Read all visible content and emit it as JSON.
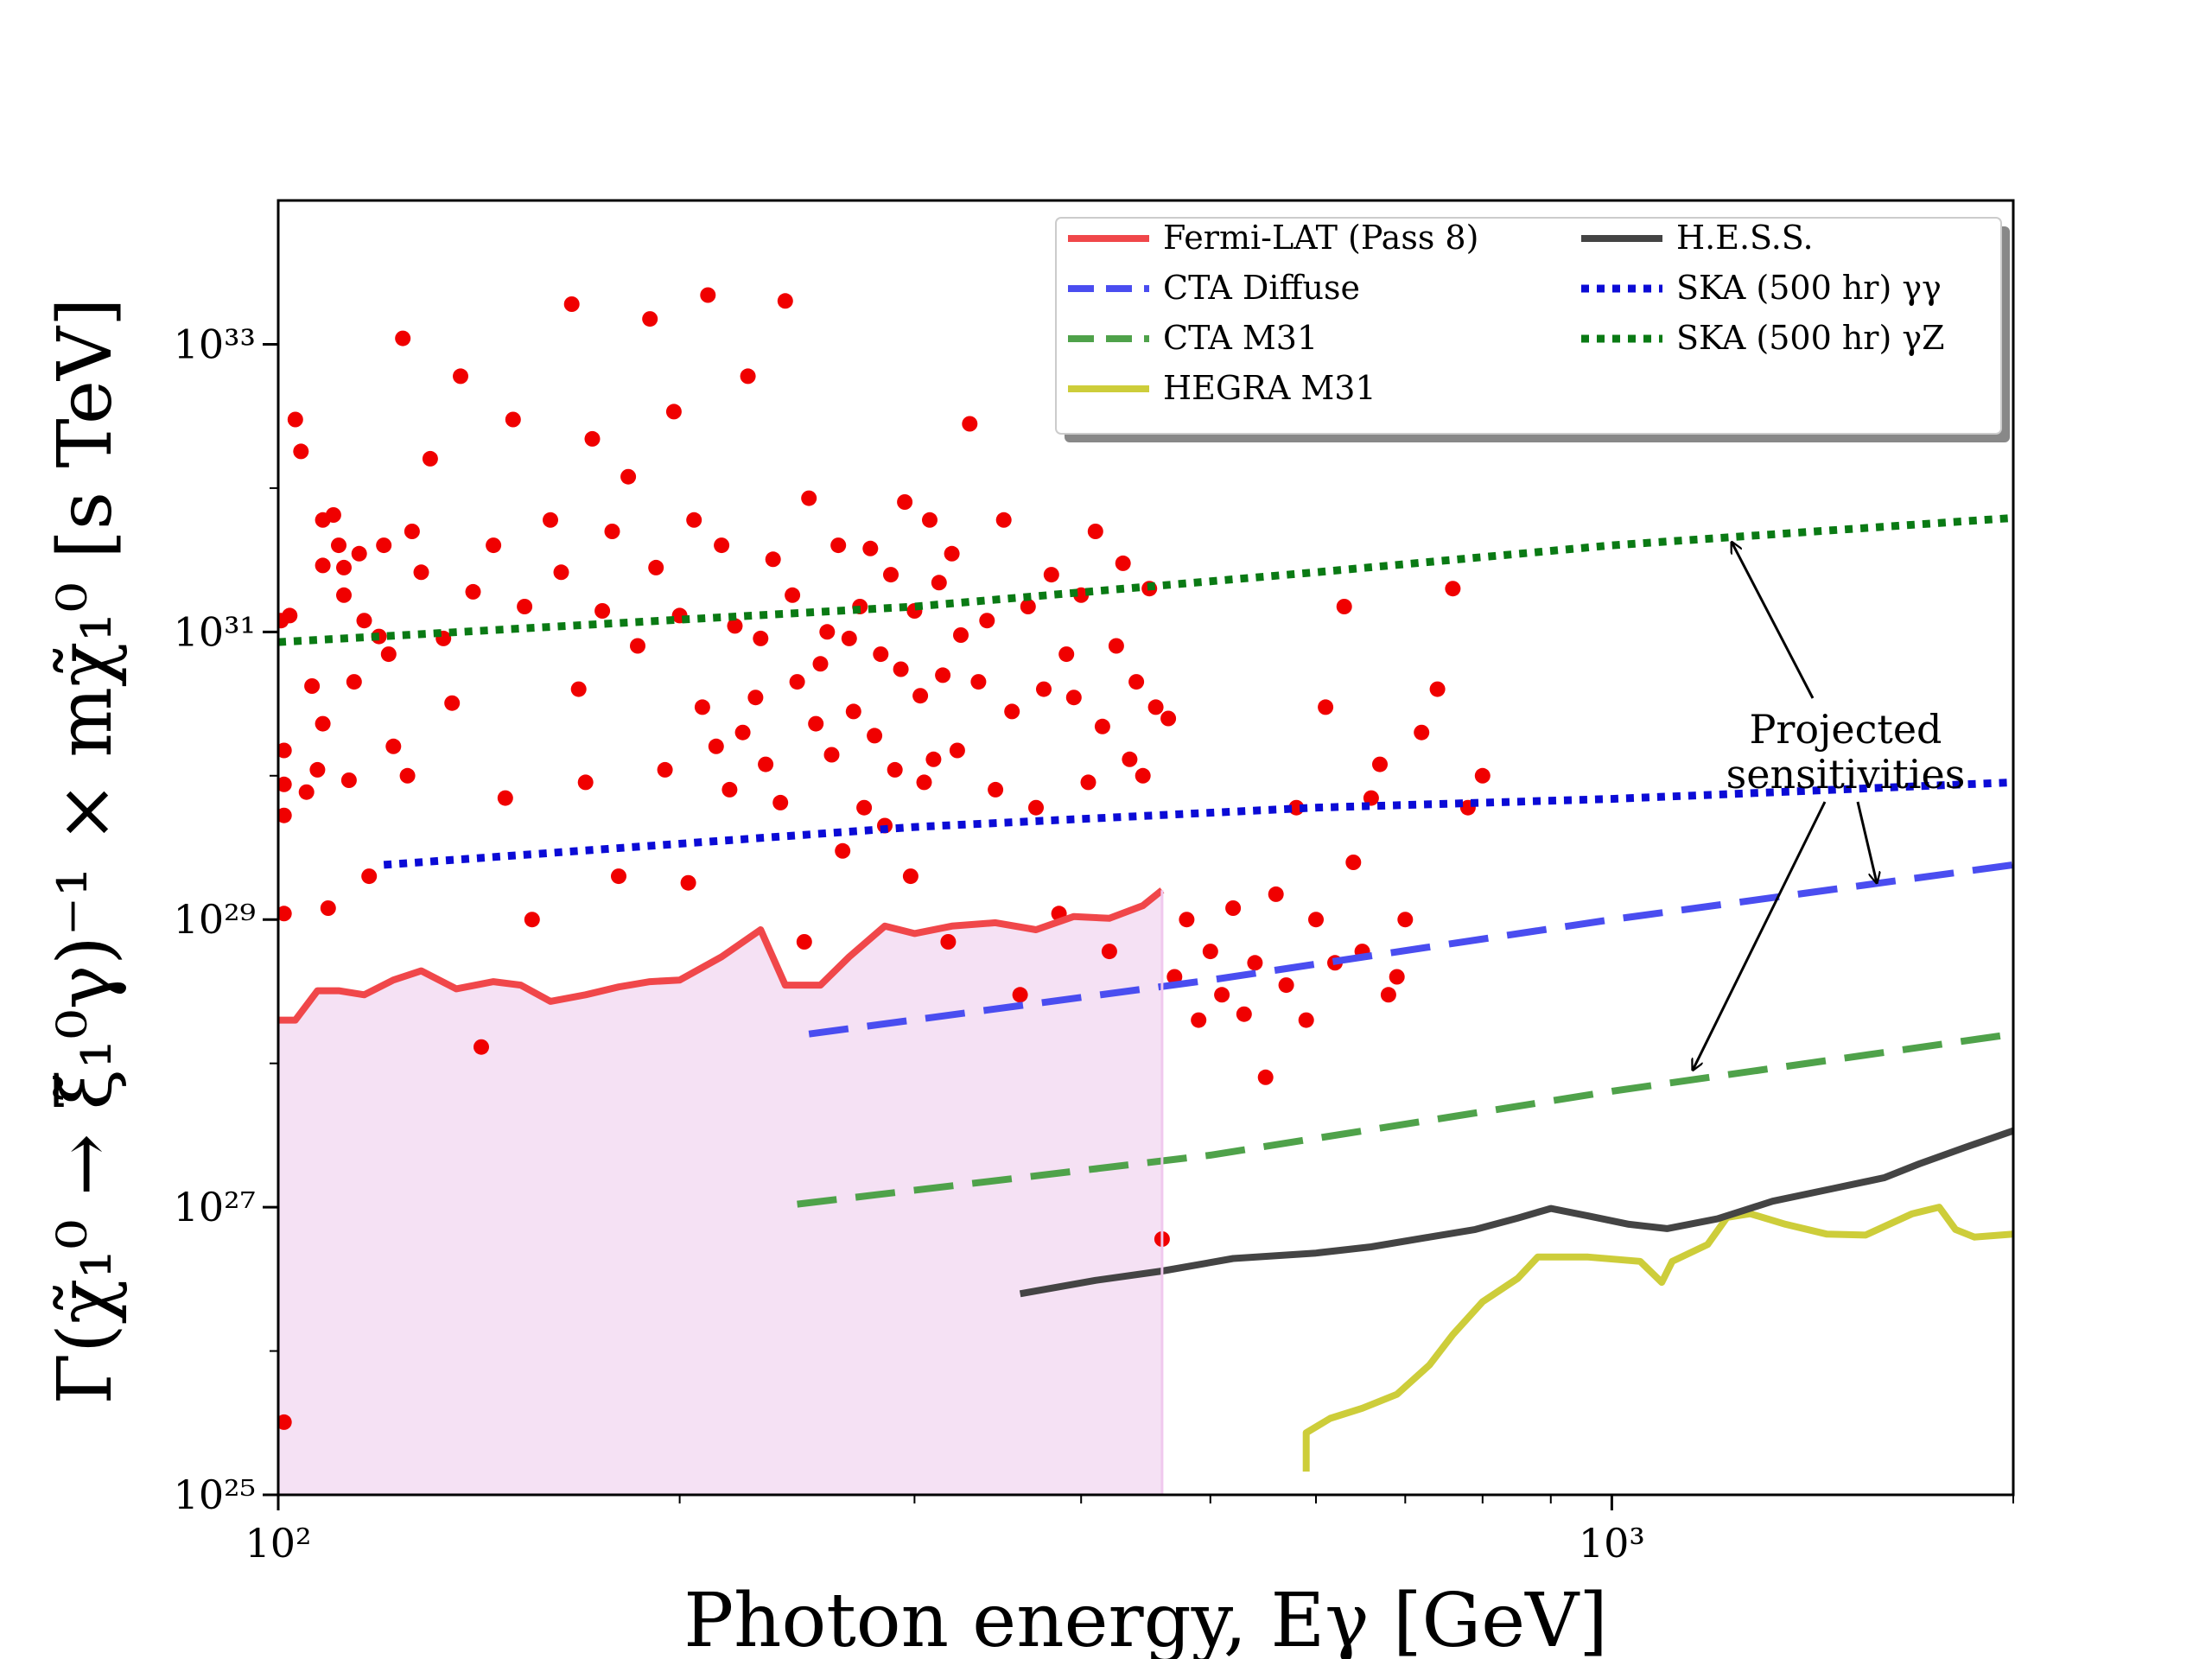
{
  "chart_data": {
    "type": "scatter",
    "xlabel": "Photon energy,  Eγ [GeV]",
    "ylabel": "Γ(χ̃₁⁰ → ξ̃₁⁰γ)⁻¹ × mχ̃₁⁰ [s TeV]",
    "xscale": "log",
    "yscale": "log",
    "xlim": [
      100,
      2000
    ],
    "ylim": [
      1e+25,
      1e+34
    ],
    "xticks": [
      {
        "value": 100,
        "label": "10²"
      },
      {
        "value": 1000,
        "label": "10³"
      }
    ],
    "yticks": [
      {
        "value": 1e+25,
        "label": "10²⁵"
      },
      {
        "value": 1e+27,
        "label": "10²⁷"
      },
      {
        "value": 1e+29,
        "label": "10²⁹"
      },
      {
        "value": 1e+31,
        "label": "10³¹"
      },
      {
        "value": 1e+33,
        "label": "10³³"
      }
    ],
    "shaded_region": {
      "name": "Fermi-LAT excluded region",
      "color": "#f5e1f4",
      "x_max": 460
    },
    "series": [
      {
        "name": "Fermi-LAT (Pass 8)",
        "color": "#f0474a",
        "style": "solid",
        "points": [
          [
            100,
            2e+28
          ],
          [
            103,
            2e+28
          ],
          [
            107,
            3.2e+28
          ],
          [
            111,
            3.2e+28
          ],
          [
            116,
            3e+28
          ],
          [
            122,
            3.8e+28
          ],
          [
            128,
            4.4e+28
          ],
          [
            136,
            3.3e+28
          ],
          [
            145,
            3.7e+28
          ],
          [
            152,
            3.5e+28
          ],
          [
            160,
            2.7e+28
          ],
          [
            170,
            3e+28
          ],
          [
            180,
            3.4e+28
          ],
          [
            190,
            3.7e+28
          ],
          [
            200,
            3.8e+28
          ],
          [
            215,
            5.5e+28
          ],
          [
            230,
            8.5e+28
          ],
          [
            240,
            3.5e+28
          ],
          [
            255,
            3.5e+28
          ],
          [
            268,
            5.5e+28
          ],
          [
            285,
            9e+28
          ],
          [
            300,
            8e+28
          ],
          [
            320,
            9e+28
          ],
          [
            345,
            9.5e+28
          ],
          [
            370,
            8.5e+28
          ],
          [
            395,
            1.05e+29
          ],
          [
            420,
            1.02e+29
          ],
          [
            445,
            1.25e+29
          ],
          [
            460,
            1.6e+29
          ]
        ]
      },
      {
        "name": "CTA Diffuse",
        "color": "#4a4df0",
        "style": "dashed",
        "points": [
          [
            250,
            1.6e+28
          ],
          [
            500,
            3.8e+28
          ],
          [
            1000,
            1e+29
          ],
          [
            2000,
            2.4e+29
          ]
        ]
      },
      {
        "name": "CTA M31",
        "color": "#4fa24a",
        "style": "dashed",
        "points": [
          [
            245,
            1.05e+27
          ],
          [
            500,
            2.3e+27
          ],
          [
            1000,
            6.4e+27
          ],
          [
            2000,
            1.6e+28
          ]
        ]
      },
      {
        "name": "HEGRA M31",
        "color": "#cdcd3a",
        "style": "solid",
        "points": [
          [
            590,
            1.45e+25
          ],
          [
            590,
            2.7e+25
          ],
          [
            615,
            3.4e+25
          ],
          [
            650,
            4e+25
          ],
          [
            690,
            5e+25
          ],
          [
            730,
            8e+25
          ],
          [
            760,
            1.3e+26
          ],
          [
            800,
            2.2e+26
          ],
          [
            850,
            3.2e+26
          ],
          [
            880,
            4.5e+26
          ],
          [
            960,
            4.5e+26
          ],
          [
            1050,
            4.2e+26
          ],
          [
            1090,
            3e+26
          ],
          [
            1110,
            4.2e+26
          ],
          [
            1180,
            5.5e+26
          ],
          [
            1220,
            8.5e+26
          ],
          [
            1270,
            9e+26
          ],
          [
            1350,
            7.6e+26
          ],
          [
            1450,
            6.5e+26
          ],
          [
            1550,
            6.4e+26
          ],
          [
            1680,
            9e+26
          ],
          [
            1760,
            1e+27
          ],
          [
            1810,
            7e+26
          ],
          [
            1870,
            6.2e+26
          ],
          [
            2000,
            6.5e+26
          ]
        ]
      },
      {
        "name": "H.E.S.S.",
        "color": "#444444",
        "style": "solid",
        "points": [
          [
            360,
            2.5e+26
          ],
          [
            410,
            3.1e+26
          ],
          [
            460,
            3.6e+26
          ],
          [
            520,
            4.4e+26
          ],
          [
            600,
            4.8e+26
          ],
          [
            660,
            5.3e+26
          ],
          [
            730,
            6.2e+26
          ],
          [
            790,
            7e+26
          ],
          [
            850,
            8.4e+26
          ],
          [
            900,
            9.8e+26
          ],
          [
            960,
            8.7e+26
          ],
          [
            1030,
            7.6e+26
          ],
          [
            1100,
            7.1e+26
          ],
          [
            1200,
            8.3e+26
          ],
          [
            1320,
            1.1e+27
          ],
          [
            1460,
            1.34e+27
          ],
          [
            1600,
            1.6e+27
          ],
          [
            1700,
            2e+27
          ],
          [
            1840,
            2.6e+27
          ],
          [
            2000,
            3.4e+27
          ]
        ]
      },
      {
        "name": "SKA (500 hr) γγ",
        "color": "#0b0bd6",
        "style": "dotted",
        "points": [
          [
            120,
            2.4e+29
          ],
          [
            300,
            4.4e+29
          ],
          [
            600,
            6e+29
          ],
          [
            1000,
            6.9e+29
          ],
          [
            2000,
            9e+29
          ]
        ]
      },
      {
        "name": "SKA (500 hr) γZ",
        "color": "#0a7a14",
        "style": "dotted",
        "points": [
          [
            100,
            8.5e+30
          ],
          [
            300,
            1.5e+31
          ],
          [
            600,
            2.6e+31
          ],
          [
            1000,
            4e+31
          ],
          [
            2000,
            6.2e+31
          ]
        ]
      }
    ],
    "scatter_series": {
      "name": "Model points",
      "color": "#f00000",
      "points": [
        [
          100.5,
          1.2e+31
        ],
        [
          101,
          1.5e+30
        ],
        [
          101,
          8.7e+29
        ],
        [
          101,
          5.3e+29
        ],
        [
          101,
          1.1e+29
        ],
        [
          101,
          3.2e+25
        ],
        [
          102,
          1.3e+31
        ],
        [
          103,
          3e+32
        ],
        [
          104,
          1.8e+32
        ],
        [
          105,
          7.7e+29
        ],
        [
          106,
          4.2e+30
        ],
        [
          107,
          1.1e+30
        ],
        [
          108,
          6e+31
        ],
        [
          108,
          2.9e+31
        ],
        [
          108,
          2.3e+30
        ],
        [
          109,
          1.2e+29
        ],
        [
          110,
          6.5e+31
        ],
        [
          111,
          4e+31
        ],
        [
          112,
          2.8e+31
        ],
        [
          112,
          1.8e+31
        ],
        [
          113,
          9.3e+29
        ],
        [
          114,
          4.5e+30
        ],
        [
          115,
          3.5e+31
        ],
        [
          116,
          1.2e+31
        ],
        [
          117,
          2e+29
        ],
        [
          119,
          9.3e+30
        ],
        [
          120,
          4e+31
        ],
        [
          121,
          7e+30
        ],
        [
          122,
          1.6e+30
        ],
        [
          124,
          1.1e+33
        ],
        [
          125,
          1e+30
        ],
        [
          126,
          5e+31
        ],
        [
          128,
          2.6e+31
        ],
        [
          130,
          1.6e+32
        ],
        [
          133,
          9e+30
        ],
        [
          135,
          3.2e+30
        ],
        [
          137,
          6e+32
        ],
        [
          140,
          1.9e+31
        ],
        [
          142,
          1.3e+28
        ],
        [
          145,
          4e+31
        ],
        [
          148,
          7e+29
        ],
        [
          150,
          3e+32
        ],
        [
          153,
          1.5e+31
        ],
        [
          155,
          1e+29
        ],
        [
          160,
          6e+31
        ],
        [
          163,
          2.6e+31
        ],
        [
          166,
          1.9e+33
        ],
        [
          168,
          4e+30
        ],
        [
          170,
          9e+29
        ],
        [
          172,
          2.2e+32
        ],
        [
          175,
          1.4e+31
        ],
        [
          178,
          5e+31
        ],
        [
          180,
          2e+29
        ],
        [
          183,
          1.2e+32
        ],
        [
          186,
          8e+30
        ],
        [
          190,
          1.5e+33
        ],
        [
          192,
          2.8e+31
        ],
        [
          195,
          1.1e+30
        ],
        [
          198,
          3.4e+32
        ],
        [
          200,
          1.3e+31
        ],
        [
          203,
          1.8e+29
        ],
        [
          205,
          6e+31
        ],
        [
          208,
          3e+30
        ],
        [
          210,
          2.2e+33
        ],
        [
          213,
          1.6e+30
        ],
        [
          215,
          4e+31
        ],
        [
          218,
          8e+29
        ],
        [
          220,
          1.1e+31
        ],
        [
          223,
          2e+30
        ],
        [
          225,
          6e+32
        ],
        [
          228,
          3.5e+30
        ],
        [
          230,
          9e+30
        ],
        [
          232,
          1.2e+30
        ],
        [
          235,
          3.2e+31
        ],
        [
          238,
          6.5e+29
        ],
        [
          240,
          2e+33
        ],
        [
          243,
          1.8e+31
        ],
        [
          245,
          4.5e+30
        ],
        [
          248,
          7e+28
        ],
        [
          250,
          8.5e+31
        ],
        [
          253,
          2.3e+30
        ],
        [
          255,
          6e+30
        ],
        [
          258,
          1e+31
        ],
        [
          260,
          1.4e+30
        ],
        [
          263,
          4e+31
        ],
        [
          265,
          3e+29
        ],
        [
          268,
          9e+30
        ],
        [
          270,
          2.8e+30
        ],
        [
          273,
          1.5e+31
        ],
        [
          275,
          6e+29
        ],
        [
          278,
          3.8e+31
        ],
        [
          280,
          1.9e+30
        ],
        [
          283,
          7e+30
        ],
        [
          285,
          4.5e+29
        ],
        [
          288,
          2.5e+31
        ],
        [
          290,
          1.1e+30
        ],
        [
          293,
          5.5e+30
        ],
        [
          295,
          8e+31
        ],
        [
          298,
          2e+29
        ],
        [
          300,
          1.4e+31
        ],
        [
          303,
          3.6e+30
        ],
        [
          305,
          9e+29
        ],
        [
          308,
          6e+31
        ],
        [
          310,
          1.3e+30
        ],
        [
          313,
          2.2e+31
        ],
        [
          315,
          5e+30
        ],
        [
          318,
          7e+28
        ],
        [
          320,
          3.5e+31
        ],
        [
          323,
          1.5e+30
        ],
        [
          325,
          9.5e+30
        ],
        [
          330,
          2.8e+32
        ],
        [
          335,
          4.5e+30
        ],
        [
          340,
          1.2e+31
        ],
        [
          345,
          8e+29
        ],
        [
          350,
          6e+31
        ],
        [
          355,
          2.8e+30
        ],
        [
          360,
          3e+28
        ],
        [
          365,
          1.5e+31
        ],
        [
          370,
          6e+29
        ],
        [
          375,
          4e+30
        ],
        [
          380,
          2.5e+31
        ],
        [
          385,
          1.1e+29
        ],
        [
          390,
          7e+30
        ],
        [
          395,
          3.5e+30
        ],
        [
          400,
          1.8e+31
        ],
        [
          405,
          9e+29
        ],
        [
          410,
          5e+31
        ],
        [
          415,
          2.2e+30
        ],
        [
          420,
          6e+28
        ],
        [
          425,
          8e+30
        ],
        [
          430,
          3e+31
        ],
        [
          435,
          1.3e+30
        ],
        [
          440,
          4.5e+30
        ],
        [
          445,
          1e+30
        ],
        [
          450,
          2e+31
        ],
        [
          455,
          3e+30
        ],
        [
          460,
          6e+26
        ],
        [
          465,
          2.5e+30
        ],
        [
          470,
          4e+28
        ],
        [
          480,
          1e+29
        ],
        [
          490,
          2e+28
        ],
        [
          500,
          6e+28
        ],
        [
          510,
          3e+28
        ],
        [
          520,
          1.2e+29
        ],
        [
          530,
          2.2e+28
        ],
        [
          540,
          5e+28
        ],
        [
          550,
          8e+27
        ],
        [
          560,
          1.5e+29
        ],
        [
          570,
          3.5e+28
        ],
        [
          580,
          6e+29
        ],
        [
          590,
          2e+28
        ],
        [
          600,
          1e+29
        ],
        [
          610,
          3e+30
        ],
        [
          620,
          5e+28
        ],
        [
          630,
          1.5e+31
        ],
        [
          640,
          2.5e+29
        ],
        [
          650,
          6e+28
        ],
        [
          660,
          7e+29
        ],
        [
          670,
          1.2e+30
        ],
        [
          680,
          3e+28
        ],
        [
          690,
          4e+28
        ],
        [
          700,
          1e+29
        ],
        [
          720,
          2e+30
        ],
        [
          740,
          4e+30
        ],
        [
          760,
          2e+31
        ],
        [
          780,
          6e+29
        ],
        [
          800,
          1e+30
        ]
      ]
    },
    "legend": {
      "position": "top-right",
      "entries": [
        {
          "label": "Fermi-LAT (Pass 8)",
          "color": "#f0474a",
          "style": "solid"
        },
        {
          "label": "H.E.S.S.",
          "color": "#444444",
          "style": "solid"
        },
        {
          "label": "CTA Diffuse",
          "color": "#4a4df0",
          "style": "dashed"
        },
        {
          "label": "SKA (500 hr) γγ",
          "color": "#0b0bd6",
          "style": "dotted"
        },
        {
          "label": "CTA M31",
          "color": "#4fa24a",
          "style": "dashed"
        },
        {
          "label": "SKA (500 hr) γZ",
          "color": "#0a7a14",
          "style": "dotted"
        },
        {
          "label": "HEGRA M31",
          "color": "#cdcd3a",
          "style": "solid"
        }
      ]
    },
    "annotation": {
      "lines": [
        "Projected",
        "sensitivities"
      ],
      "arrow_targets": [
        {
          "series": "SKA (500 hr) γZ",
          "x": 1230,
          "y": 4.2e+31
        },
        {
          "series": "CTA Diffuse",
          "x": 1580,
          "y": 1.8e+29
        },
        {
          "series": "CTA M31",
          "x": 1150,
          "y": 9e+27
        }
      ]
    }
  }
}
